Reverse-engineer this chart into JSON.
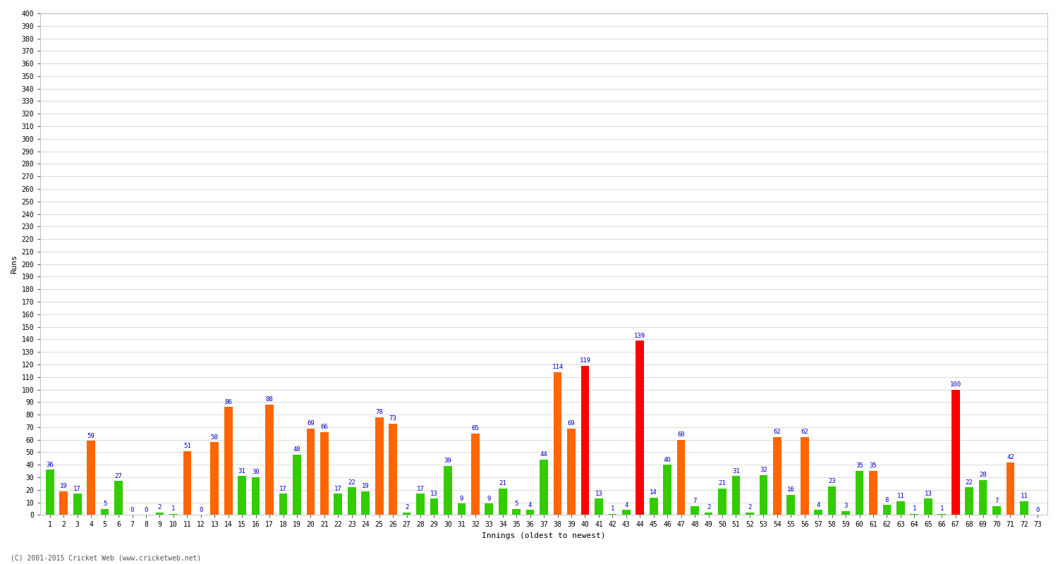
{
  "xlabel": "Innings (oldest to newest)",
  "ylabel": "Runs",
  "background_color": "#ffffff",
  "plot_background": "#ffffff",
  "innings": [
    1,
    2,
    3,
    4,
    5,
    6,
    7,
    8,
    9,
    10,
    11,
    12,
    13,
    14,
    15,
    16,
    17,
    18,
    19,
    20,
    21,
    22,
    23,
    24,
    25,
    26,
    27,
    28,
    29,
    30,
    31,
    32,
    33,
    34,
    35,
    36,
    37,
    38,
    39,
    40,
    41,
    42,
    43,
    44,
    45,
    46,
    47,
    48,
    49,
    50,
    51,
    52,
    53,
    54,
    55,
    56,
    57,
    58,
    59,
    60,
    61,
    62,
    63,
    64,
    65,
    66,
    67,
    68,
    69,
    70,
    71,
    72,
    73
  ],
  "scores": [
    36,
    19,
    17,
    59,
    5,
    27,
    0,
    0,
    2,
    1,
    51,
    0,
    58,
    86,
    31,
    30,
    88,
    17,
    48,
    69,
    66,
    17,
    22,
    19,
    78,
    73,
    2,
    17,
    13,
    39,
    9,
    65,
    9,
    21,
    5,
    4,
    44,
    114,
    69,
    119,
    13,
    1,
    4,
    139,
    14,
    40,
    60,
    7,
    2,
    21,
    31,
    2,
    32,
    62,
    16,
    62,
    4,
    23,
    3,
    35,
    35,
    8,
    11,
    1,
    13,
    1,
    100,
    22,
    28,
    7,
    42,
    11,
    0
  ],
  "colors": [
    "#33cc00",
    "#ff6600",
    "#33cc00",
    "#ff6600",
    "#33cc00",
    "#33cc00",
    "#33cc00",
    "#33cc00",
    "#33cc00",
    "#33cc00",
    "#ff6600",
    "#ff6600",
    "#ff6600",
    "#ff6600",
    "#33cc00",
    "#33cc00",
    "#ff6600",
    "#33cc00",
    "#33cc00",
    "#ff6600",
    "#ff6600",
    "#33cc00",
    "#33cc00",
    "#33cc00",
    "#ff6600",
    "#ff6600",
    "#33cc00",
    "#33cc00",
    "#33cc00",
    "#33cc00",
    "#33cc00",
    "#ff6600",
    "#33cc00",
    "#33cc00",
    "#33cc00",
    "#33cc00",
    "#33cc00",
    "#ff6600",
    "#ff6600",
    "#ff0000",
    "#33cc00",
    "#33cc00",
    "#33cc00",
    "#ff0000",
    "#33cc00",
    "#33cc00",
    "#ff6600",
    "#33cc00",
    "#33cc00",
    "#33cc00",
    "#33cc00",
    "#33cc00",
    "#33cc00",
    "#ff6600",
    "#33cc00",
    "#ff6600",
    "#33cc00",
    "#33cc00",
    "#33cc00",
    "#33cc00",
    "#ff6600",
    "#33cc00",
    "#33cc00",
    "#33cc00",
    "#33cc00",
    "#33cc00",
    "#ff0000",
    "#33cc00",
    "#33cc00",
    "#33cc00",
    "#ff6600",
    "#33cc00",
    "#33cc00"
  ],
  "ylim": [
    0,
    400
  ],
  "ytick_step": 10,
  "grid_color": "#cccccc",
  "bar_width": 0.6,
  "label_color": "#0000cc",
  "label_fontsize": 6.5,
  "tick_fontsize": 7,
  "axis_label_fontsize": 8,
  "footer": "(C) 2001-2015 Cricket Web (www.cricketweb.net)"
}
